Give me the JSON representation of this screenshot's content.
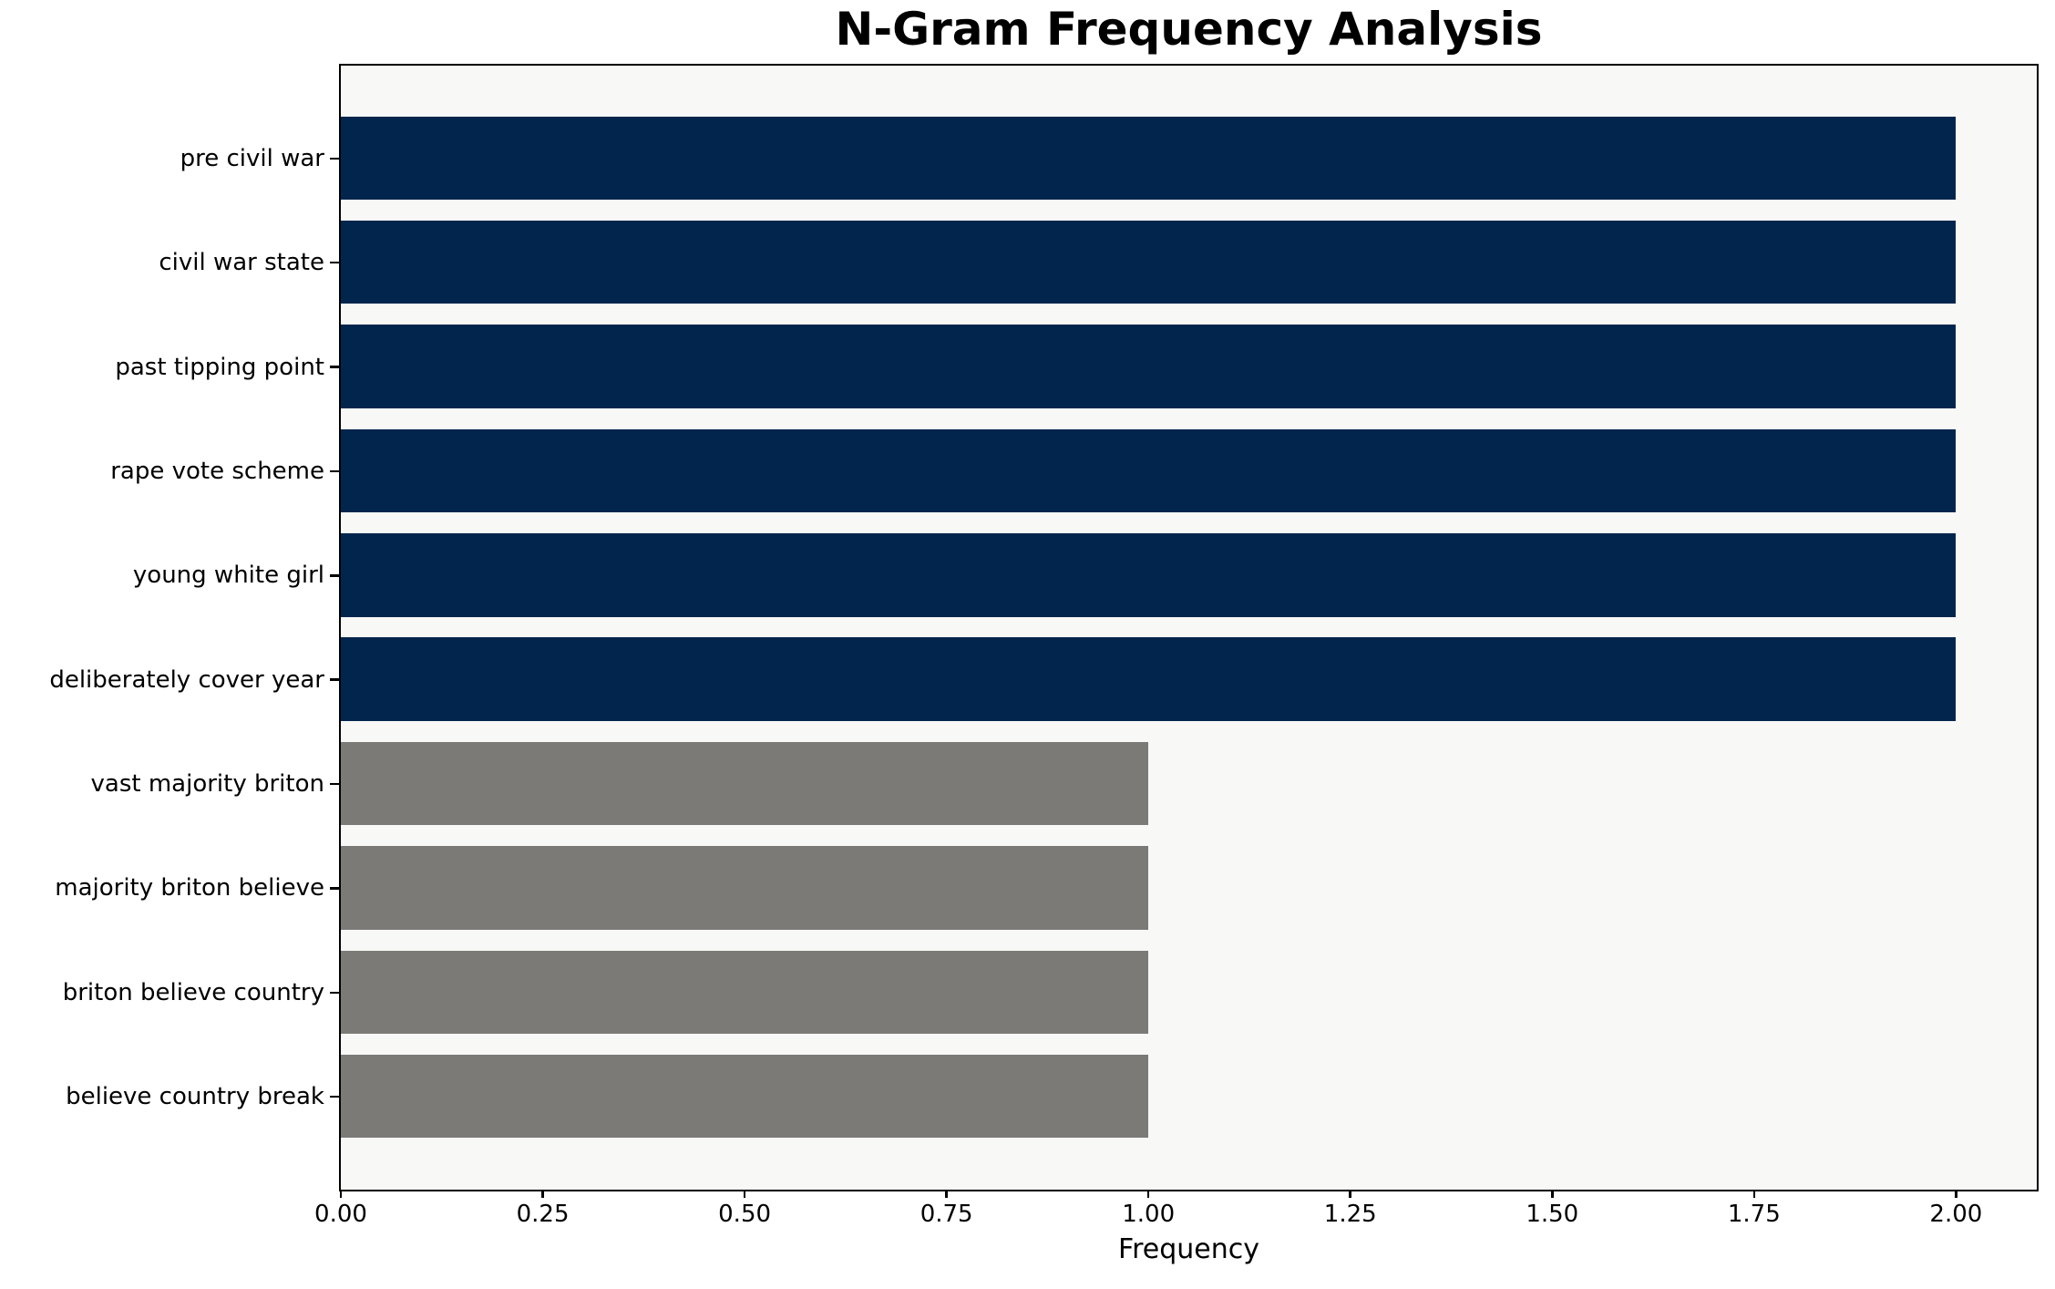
{
  "chart_data": {
    "type": "bar",
    "orientation": "horizontal",
    "title": "N-Gram Frequency Analysis",
    "xlabel": "Frequency",
    "ylabel": "",
    "categories": [
      "pre civil war",
      "civil war state",
      "past tipping point",
      "rape vote scheme",
      "young white girl",
      "deliberately cover year",
      "vast majority briton",
      "majority briton believe",
      "briton believe country",
      "believe country break"
    ],
    "values": [
      2,
      2,
      2,
      2,
      2,
      2,
      1,
      1,
      1,
      1
    ],
    "bar_colors": [
      "#02254d",
      "#02254d",
      "#02254d",
      "#02254d",
      "#02254d",
      "#02254d",
      "#7b7a76",
      "#7b7a76",
      "#7b7a76",
      "#7b7a76"
    ],
    "xlim": [
      0,
      2.1
    ],
    "xticks": {
      "values": [
        0,
        0.25,
        0.5,
        0.75,
        1.0,
        1.25,
        1.5,
        1.75,
        2.0
      ],
      "labels": [
        "0.00",
        "0.25",
        "0.50",
        "0.75",
        "1.00",
        "1.25",
        "1.50",
        "1.75",
        "2.00"
      ]
    },
    "grid": false,
    "legend": null,
    "colors": {
      "high_freq_bar": "#02254d",
      "low_freq_bar": "#7b7a76",
      "plot_background": "#f8f8f7",
      "figure_background": "#ffffff",
      "spine": "#000000",
      "text": "#000000"
    }
  }
}
